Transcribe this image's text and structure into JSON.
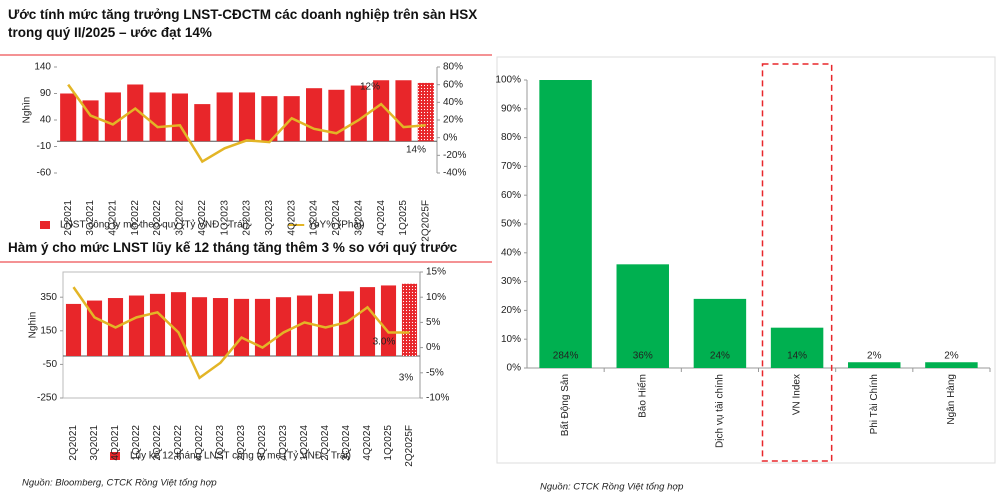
{
  "chart_data": [
    {
      "type": "combo",
      "title": "Ước tính mức tăng trưởng LNST-CĐCTM các doanh nghiệp trên sàn HSX trong quý II/2025 – ước đạt 14%",
      "y_label": "Nghìn",
      "categories": [
        "2Q2021",
        "3Q2021",
        "4Q2021",
        "1Q2022",
        "2Q2022",
        "3Q2022",
        "4Q2022",
        "1Q2023",
        "2Q2023",
        "3Q2023",
        "4Q2023",
        "1Q2024",
        "2Q2024",
        "3Q2024",
        "4Q2024",
        "1Q2025",
        "2Q2025F"
      ],
      "series": [
        {
          "name": "LNST công ty mẹ theo quý (Tỷ VNĐ - Trái)",
          "color": "#e8262a",
          "values": [
            90,
            77,
            92,
            107,
            92,
            90,
            70,
            92,
            92,
            85,
            85,
            100,
            97,
            105,
            115,
            115,
            110
          ]
        },
        {
          "name": "YoY% (Phải)",
          "color": "#e3b526",
          "axis": "y2",
          "values": [
            60,
            25,
            15,
            33,
            12,
            14,
            -27,
            -12,
            -3,
            -5,
            22,
            10,
            5,
            20,
            38,
            12,
            14
          ]
        }
      ],
      "annotations": [
        "12%",
        "14%"
      ],
      "ylim": [
        -60,
        140
      ],
      "yticks": [
        -60,
        -10,
        40,
        90,
        140
      ],
      "y2lim": [
        -40,
        80
      ],
      "y2ticks": [
        {
          "value": -40,
          "label": "-40%"
        },
        {
          "value": -20,
          "label": "-20%"
        },
        {
          "value": 0,
          "label": "0%"
        },
        {
          "value": 20,
          "label": "20%"
        },
        {
          "value": 40,
          "label": "40%"
        },
        {
          "value": 60,
          "label": "60%"
        },
        {
          "value": 80,
          "label": "80%"
        }
      ]
    },
    {
      "type": "combo",
      "title": "Hàm ý cho mức LNST lũy kế 12 tháng tăng thêm 3 % so với quý trước",
      "y_label": "Nghìn",
      "categories": [
        "2Q2021",
        "3Q2021",
        "4Q2021",
        "1Q2022",
        "2Q2022",
        "3Q2022",
        "4Q2022",
        "1Q2023",
        "2Q2023",
        "3Q2023",
        "4Q2023",
        "1Q2024",
        "2Q2024",
        "3Q2024",
        "4Q2024",
        "1Q2025",
        "2Q2025F"
      ],
      "series": [
        {
          "name": "Lũy kế 12 tháng LNST công ty mẹ (Tỷ VNĐ - Trái)",
          "color": "#e8262a",
          "values": [
            310,
            330,
            345,
            360,
            370,
            380,
            350,
            345,
            340,
            340,
            350,
            360,
            370,
            385,
            410,
            420,
            430
          ]
        },
        {
          "color": "#e3b526",
          "axis": "y2",
          "values": [
            12,
            6,
            4,
            6,
            7,
            3,
            -6,
            -3,
            2,
            0,
            3,
            5,
            4,
            5,
            8,
            3,
            3
          ]
        }
      ],
      "annotations": [
        "3.0%",
        "3%"
      ],
      "source": "Nguồn: Bloomberg, CTCK Rồng Việt tổng hợp",
      "ylim": [
        -250,
        500
      ],
      "yticks": [
        -250,
        -50,
        150,
        350
      ],
      "y2lim": [
        -10,
        15
      ],
      "y2ticks": [
        {
          "value": -10,
          "label": "-10%"
        },
        {
          "value": -5,
          "label": "-5%"
        },
        {
          "value": 0,
          "label": "0%"
        },
        {
          "value": 5,
          "label": "5%"
        },
        {
          "value": 10,
          "label": "10%"
        },
        {
          "value": 15,
          "label": "15%"
        }
      ]
    },
    {
      "type": "bar",
      "categories": [
        "Bất Động Sản",
        "Bảo Hiểm",
        "Dịch vụ tài chính",
        "VN Index",
        "Phi Tài Chính",
        "Ngân Hàng"
      ],
      "values": [
        284,
        36,
        24,
        14,
        2,
        2
      ],
      "value_labels": [
        "284%",
        "36%",
        "24%",
        "14%",
        "2%",
        "2%"
      ],
      "color": "#00b050",
      "source": "Nguồn: CTCK Rồng Việt tổng hợp",
      "ylim": [
        0,
        100
      ],
      "yticks": [
        {
          "value": 0,
          "label": "0%"
        },
        {
          "value": 10,
          "label": "10%"
        },
        {
          "value": 20,
          "label": "20%"
        },
        {
          "value": 30,
          "label": "30%"
        },
        {
          "value": 40,
          "label": "40%"
        },
        {
          "value": 50,
          "label": "50%"
        },
        {
          "value": 60,
          "label": "60%"
        },
        {
          "value": 70,
          "label": "70%"
        },
        {
          "value": 80,
          "label": "80%"
        },
        {
          "value": 90,
          "label": "90%"
        },
        {
          "value": 100,
          "label": "100%"
        }
      ]
    }
  ]
}
